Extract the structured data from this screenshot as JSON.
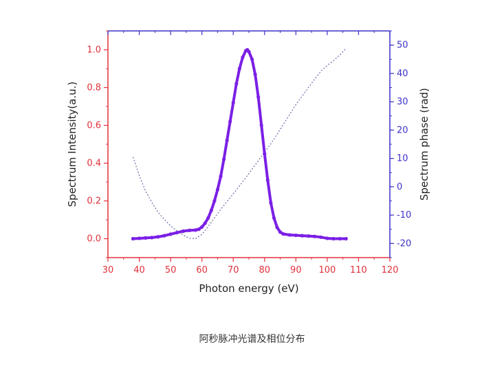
{
  "caption": "阿秒脉冲光谱及相位分布",
  "colors": {
    "left_axis": "#e0303a",
    "right_axis": "#3b30c8",
    "bottom_axis": "#e0303a",
    "top_axis": "#3b30c8",
    "intensity_dots": "#7b1fe6",
    "intensity_fit": "#e0303a",
    "phase_line": "#6a6aa8"
  },
  "chart_data": {
    "type": "line",
    "title": "",
    "xlabel": "Photon energy (eV)",
    "ylabel": "Spectrum Intensity(a.u.)",
    "y2label": "Spectrum phase (rad)",
    "xlim": [
      30,
      120
    ],
    "ylim": [
      -0.1,
      1.1
    ],
    "y2lim": [
      -25,
      55
    ],
    "xticks": [
      30,
      40,
      50,
      60,
      70,
      80,
      90,
      100,
      110,
      120
    ],
    "yticks": [
      0.0,
      0.2,
      0.4,
      0.6,
      0.8,
      1.0
    ],
    "y2ticks": [
      -20,
      -10,
      0,
      10,
      20,
      30,
      40,
      50
    ],
    "xtick_labels": [
      "30",
      "40",
      "50",
      "60",
      "70",
      "80",
      "90",
      "100",
      "110",
      "120"
    ],
    "ytick_labels": [
      "0.0",
      "0.2",
      "0.4",
      "0.6",
      "0.8",
      "1.0"
    ],
    "y2tick_labels": [
      "-20",
      "-10",
      "0",
      "10",
      "20",
      "30",
      "40",
      "50"
    ],
    "grid": false,
    "series": [
      {
        "style": "dots",
        "axis": "left",
        "x": [
          38,
          40,
          42,
          44,
          46,
          48,
          50,
          52,
          54,
          56,
          58,
          59,
          60,
          61,
          62,
          63,
          64,
          65,
          66,
          67,
          68,
          69,
          70,
          71,
          72,
          73,
          74,
          74.5,
          75,
          76,
          77,
          78,
          79,
          80,
          81,
          82,
          83,
          84,
          85,
          86,
          88,
          90,
          92,
          94,
          96,
          98,
          100,
          102,
          104,
          106
        ],
        "y": [
          0.0,
          0.002,
          0.004,
          0.006,
          0.01,
          0.016,
          0.024,
          0.032,
          0.04,
          0.044,
          0.046,
          0.05,
          0.062,
          0.082,
          0.11,
          0.15,
          0.2,
          0.26,
          0.33,
          0.42,
          0.52,
          0.62,
          0.72,
          0.82,
          0.9,
          0.96,
          0.995,
          1.0,
          0.99,
          0.95,
          0.87,
          0.75,
          0.6,
          0.45,
          0.31,
          0.19,
          0.11,
          0.06,
          0.035,
          0.025,
          0.02,
          0.018,
          0.016,
          0.014,
          0.012,
          0.008,
          0.002,
          0.0,
          0.0,
          0.0
        ]
      },
      {
        "style": "solid",
        "axis": "left",
        "x": [
          59,
          60,
          61,
          62,
          63,
          64,
          65,
          66,
          67,
          68,
          69,
          70,
          71,
          72,
          73,
          74,
          74.5,
          75,
          76,
          77,
          78,
          79,
          80,
          81,
          82,
          83,
          84,
          85,
          86
        ],
        "y": [
          0.05,
          0.062,
          0.082,
          0.11,
          0.15,
          0.2,
          0.26,
          0.33,
          0.42,
          0.52,
          0.62,
          0.72,
          0.82,
          0.9,
          0.96,
          0.995,
          1.0,
          0.99,
          0.95,
          0.87,
          0.75,
          0.6,
          0.45,
          0.31,
          0.19,
          0.11,
          0.06,
          0.035,
          0.025
        ]
      },
      {
        "style": "dotted",
        "axis": "right",
        "x": [
          38,
          40,
          42,
          44,
          46,
          48,
          50,
          52,
          54,
          56,
          58,
          60,
          62,
          64,
          66,
          68,
          70,
          72,
          74,
          76,
          78,
          80,
          82,
          84,
          86,
          88,
          90,
          92,
          94,
          96,
          98,
          100,
          102,
          104,
          106
        ],
        "y": [
          10.5,
          4.0,
          -1.5,
          -5.5,
          -9.0,
          -11.5,
          -13.8,
          -15.5,
          -17.0,
          -18.2,
          -18.3,
          -16.8,
          -14.0,
          -11.0,
          -8.0,
          -5.2,
          -2.5,
          0.3,
          3.2,
          6.2,
          9.2,
          12.2,
          15.2,
          18.5,
          22.0,
          25.5,
          29.0,
          32.0,
          35.0,
          38.0,
          40.8,
          42.8,
          44.5,
          46.5,
          48.8
        ]
      }
    ]
  }
}
